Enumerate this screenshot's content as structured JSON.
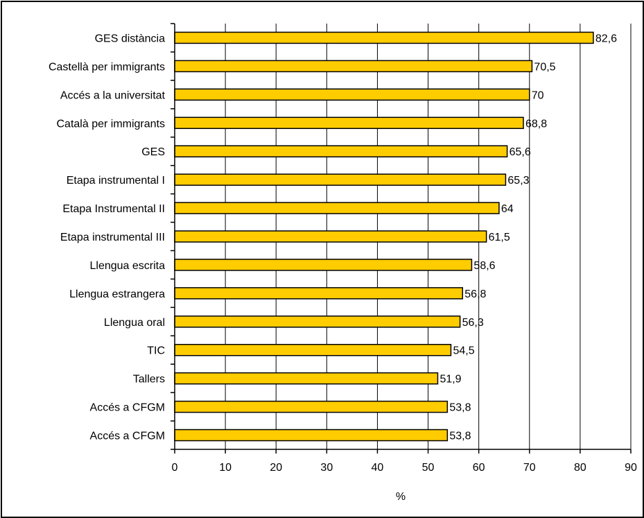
{
  "chart_data": {
    "type": "bar",
    "orientation": "horizontal",
    "categories": [
      "GES distància",
      "Castellà per immigrants",
      "Accés a la universitat",
      "Català per immigrants",
      "GES",
      "Etapa instrumental I",
      "Etapa Instrumental II",
      "Etapa instrumental III",
      "Llengua escrita",
      "Llengua estrangera",
      "Llengua oral",
      "TIC",
      "Tallers",
      "Accés a CFGM",
      "Accés a CFGM"
    ],
    "values": [
      82.6,
      70.5,
      70,
      68.8,
      65.6,
      65.3,
      64,
      61.5,
      58.6,
      56.8,
      56.3,
      54.5,
      51.9,
      53.8,
      53.8
    ],
    "data_labels": [
      "82,6",
      "70,5",
      "70",
      "68,8",
      "65,6",
      "65,3",
      "64",
      "61,5",
      "58,6",
      "56,8",
      "56,3",
      "54,5",
      "51,9",
      "53,8",
      "53,8"
    ],
    "xlabel": "%",
    "xlim": [
      0,
      90
    ],
    "xticks": [
      "0",
      "10",
      "20",
      "30",
      "40",
      "50",
      "60",
      "70",
      "80",
      "90"
    ],
    "grid": "vertical",
    "legend": "none",
    "colors": {
      "bar_fill": "#FFCC00",
      "bar_stroke": "#000000",
      "grid": "#000000",
      "frame": "#000000"
    }
  }
}
